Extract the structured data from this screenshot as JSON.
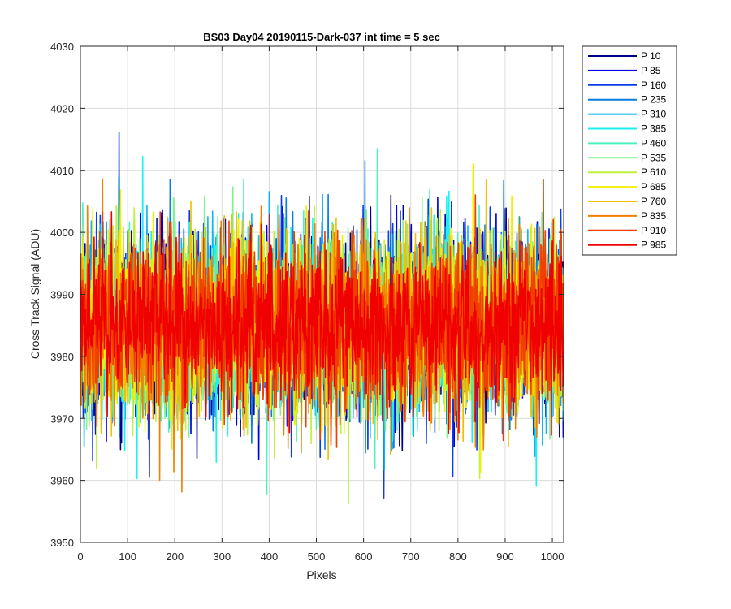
{
  "chart_data": {
    "type": "line",
    "title": "BS03 Day04 20190115-Dark-037 int time = 5 sec",
    "xlabel": "Pixels",
    "ylabel": "Cross Track Signal (ADU)",
    "xlim": [
      0,
      1024
    ],
    "ylim": [
      3950,
      4030
    ],
    "xticks": [
      0,
      100,
      200,
      300,
      400,
      500,
      600,
      700,
      800,
      900,
      1000
    ],
    "yticks": [
      3950,
      3960,
      3970,
      3980,
      3990,
      4000,
      4010,
      4020,
      4030
    ],
    "grid": true,
    "legend_position": "outside-top-right",
    "n_points": 1024,
    "series": [
      {
        "name": "P 10",
        "color": "#00008f",
        "mean": 3985,
        "spread": 7.0
      },
      {
        "name": "P 85",
        "color": "#0000e0",
        "mean": 3985,
        "spread": 7.0
      },
      {
        "name": "P 160",
        "color": "#0a3ee8",
        "mean": 3985,
        "spread": 7.0
      },
      {
        "name": "P 235",
        "color": "#0a7ee0",
        "mean": 3985,
        "spread": 7.0
      },
      {
        "name": "P 310",
        "color": "#10b4f0",
        "mean": 3985,
        "spread": 7.0
      },
      {
        "name": "P 385",
        "color": "#1ef0f0",
        "mean": 3985,
        "spread": 7.0
      },
      {
        "name": "P 460",
        "color": "#4ef0c0",
        "mean": 3985,
        "spread": 7.0
      },
      {
        "name": "P 535",
        "color": "#80f090",
        "mean": 3985,
        "spread": 7.0
      },
      {
        "name": "P 610",
        "color": "#c0f040",
        "mean": 3985,
        "spread": 7.0
      },
      {
        "name": "P 685",
        "color": "#f0f000",
        "mean": 3985,
        "spread": 7.0
      },
      {
        "name": "P 760",
        "color": "#f0c000",
        "mean": 3985,
        "spread": 7.0
      },
      {
        "name": "P 835",
        "color": "#f08000",
        "mean": 3985,
        "spread": 7.0
      },
      {
        "name": "P 910",
        "color": "#f04000",
        "mean": 3985,
        "spread": 7.0
      },
      {
        "name": "P 985",
        "color": "#f00000",
        "mean": 3985,
        "spread": 6.0
      }
    ]
  }
}
